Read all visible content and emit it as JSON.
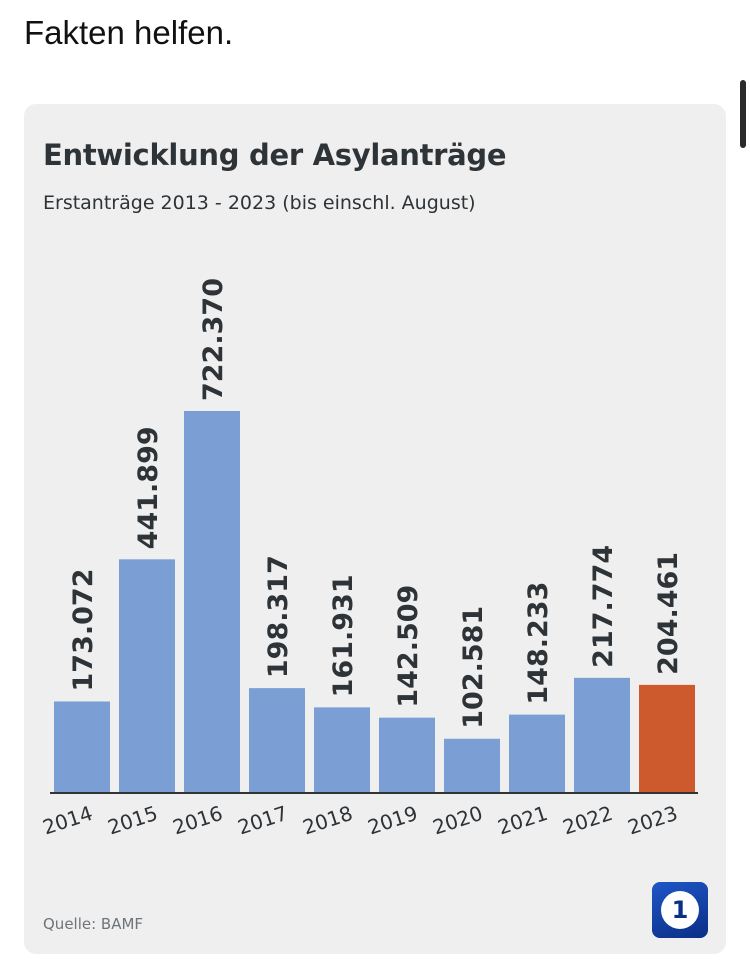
{
  "post": {
    "text": "Fakten helfen."
  },
  "chart": {
    "source": "Quelle: BAMF",
    "logo_label": "1"
  },
  "colors": {
    "bar": "#7b9fd4",
    "highlight_bar": "#cc5a2c",
    "axis": "#333333",
    "text": "#2e3338"
  },
  "icons": {
    "logo": "tagesschau-logo-icon"
  },
  "chart_data": {
    "type": "bar",
    "title": "Entwicklung der Asylanträge",
    "subtitle": "Erstanträge 2013 - 2023 (bis einschl. August)",
    "categories": [
      "2014",
      "2015",
      "2016",
      "2017",
      "2018",
      "2019",
      "2020",
      "2021",
      "2022",
      "2023"
    ],
    "values": [
      173072,
      441899,
      722370,
      198317,
      161931,
      142509,
      102581,
      148233,
      217774,
      204461
    ],
    "value_labels": [
      "173.072",
      "441.899",
      "722.370",
      "198.317",
      "161.931",
      "142.509",
      "102.581",
      "148.233",
      "217.774",
      "204.461"
    ],
    "highlight_index": 9,
    "ylim": [
      0,
      722370
    ],
    "grid": false,
    "legend": false
  }
}
